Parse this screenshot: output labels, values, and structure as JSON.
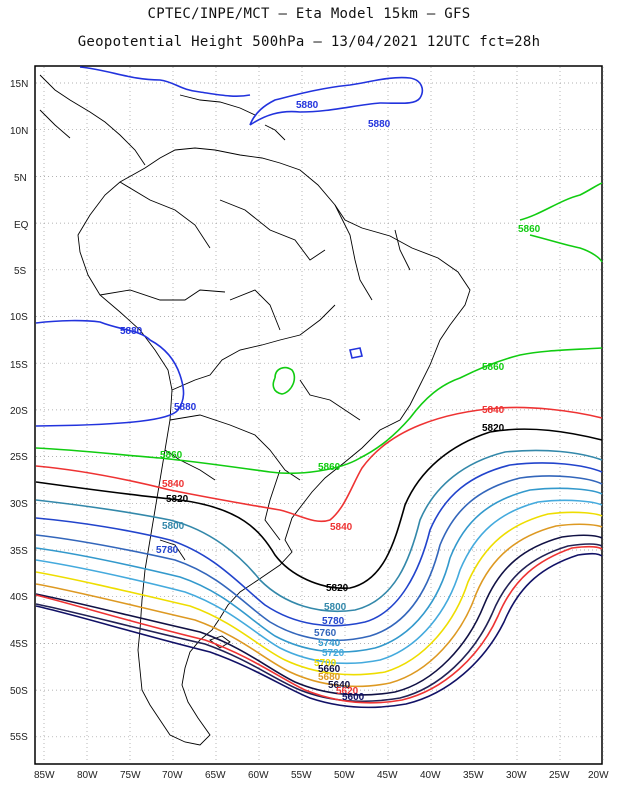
{
  "title_line1": "CPTEC/INPE/MCT –  Eta Model 15km – GFS",
  "title_line2": "Geopotential Height 500hPa – 13/04/2021 12UTC fct=28h",
  "lat_labels": [
    "15N",
    "10N",
    "5N",
    "EQ",
    "5S",
    "10S",
    "15S",
    "20S",
    "25S",
    "30S",
    "35S",
    "40S",
    "45S",
    "50S",
    "55S"
  ],
  "lon_labels": [
    "85W",
    "80W",
    "75W",
    "70W",
    "65W",
    "60W",
    "55W",
    "50W",
    "45W",
    "40W",
    "35W",
    "30W",
    "25W",
    "20W"
  ],
  "contour_labels": [
    {
      "text": "5880",
      "color": "#2233dd"
    },
    {
      "text": "5880",
      "color": "#2233dd"
    },
    {
      "text": "5880",
      "color": "#2233dd"
    },
    {
      "text": "5880",
      "color": "#2233dd"
    },
    {
      "text": "5860",
      "color": "#11cc11"
    },
    {
      "text": "5860",
      "color": "#11cc11"
    },
    {
      "text": "5860",
      "color": "#11cc11"
    },
    {
      "text": "5860",
      "color": "#11cc11"
    },
    {
      "text": "5840",
      "color": "#ee3333"
    },
    {
      "text": "5840",
      "color": "#ee3333"
    },
    {
      "text": "5840",
      "color": "#ee3333"
    },
    {
      "text": "5820",
      "color": "#000000"
    },
    {
      "text": "5820",
      "color": "#000000"
    },
    {
      "text": "5820",
      "color": "#000000"
    },
    {
      "text": "5800",
      "color": "#3388aa"
    },
    {
      "text": "5800",
      "color": "#3388aa"
    },
    {
      "text": "5780",
      "color": "#2244cc"
    },
    {
      "text": "5780",
      "color": "#2244cc"
    },
    {
      "text": "5760",
      "color": "#3366bb"
    },
    {
      "text": "5740",
      "color": "#3399cc"
    },
    {
      "text": "5720",
      "color": "#44aadd"
    },
    {
      "text": "5700",
      "color": "#eedd00"
    },
    {
      "text": "5680",
      "color": "#dd9922"
    },
    {
      "text": "5660",
      "color": "#111144"
    },
    {
      "text": "5640",
      "color": "#111144"
    },
    {
      "text": "5620",
      "color": "#ee3333"
    },
    {
      "text": "5600",
      "color": "#111166"
    }
  ]
}
